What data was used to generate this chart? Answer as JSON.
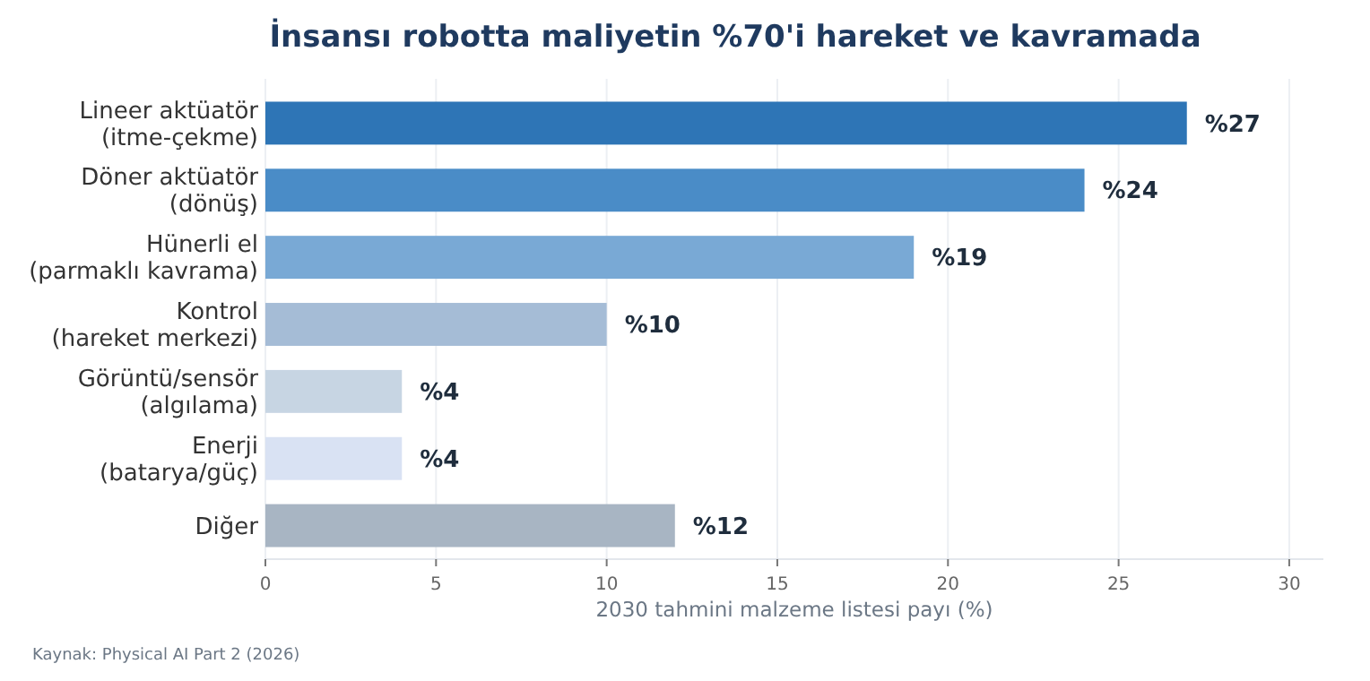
{
  "chart_data": {
    "type": "bar",
    "orientation": "horizontal",
    "title": "İnsansı robotta maliyetin %70'i hareket ve kavramada",
    "xlabel": "2030 tahmini malzeme listesi payı (%)",
    "categories": [
      "Lineer aktüatör\n(itme-çekme)",
      "Döner aktüatör\n(dönüş)",
      "Hünerli el\n(parmaklı kavrama)",
      "Kontrol\n(hareket merkezi)",
      "Görüntü/sensör\n(algılama)",
      "Enerji\n(batarya/güç)",
      "Diğer"
    ],
    "values": [
      27,
      24,
      19,
      10,
      4,
      4,
      12
    ],
    "colors": [
      "#2e75b6",
      "#4a8cc7",
      "#79a9d5",
      "#a5bcd6",
      "#c7d5e3",
      "#d9e2f3",
      "#a8b5c3"
    ],
    "value_labels": [
      "%27",
      "%24",
      "%19",
      "%10",
      "%4",
      "%4",
      "%12"
    ],
    "xlim": [
      0,
      31
    ],
    "xticks": [
      0,
      5,
      10,
      15,
      20,
      25,
      30
    ],
    "grid": "x",
    "annotations": [
      "Kaynak: Physical AI Part 2 (2026)"
    ]
  }
}
